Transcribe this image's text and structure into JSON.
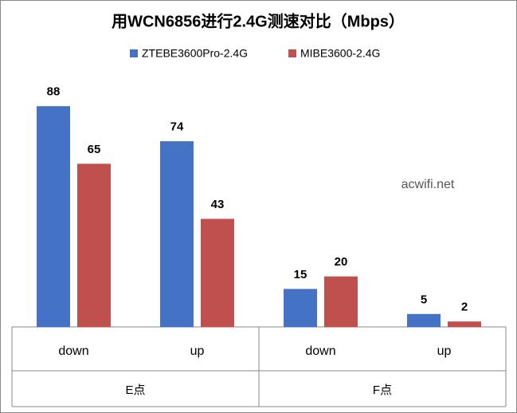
{
  "chart_data": {
    "type": "bar",
    "title": "用WCN6856进行2.4G测速对比（Mbps）",
    "annotation": "acwifi.net",
    "groups": [
      {
        "name": "E点",
        "categories": [
          "down",
          "up"
        ]
      },
      {
        "name": "F点",
        "categories": [
          "down",
          "up"
        ]
      }
    ],
    "series": [
      {
        "name": "ZTEBE3600Pro-2.4G",
        "color": "#4472c4",
        "values": [
          88,
          74,
          15,
          5
        ]
      },
      {
        "name": "MIBE3600-2.4G",
        "color": "#c0504d",
        "values": [
          65,
          43,
          20,
          2
        ]
      }
    ],
    "legend": "top"
  }
}
